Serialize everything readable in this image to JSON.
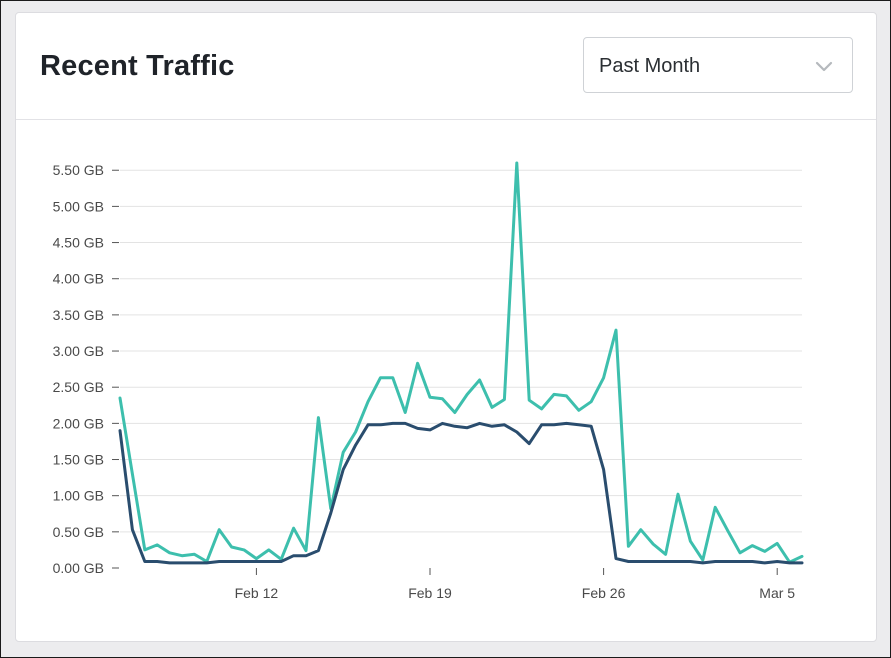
{
  "card": {
    "title": "Recent Traffic",
    "period_select": {
      "selected": "Past Month",
      "icon": "chevron-down-icon"
    }
  },
  "chart_data": {
    "type": "line",
    "y_unit": "GB",
    "ylim": [
      0,
      5.6
    ],
    "y_ticks": [
      {
        "value": 0.0,
        "label": "0.00 GB"
      },
      {
        "value": 0.5,
        "label": "0.50 GB"
      },
      {
        "value": 1.0,
        "label": "1.00 GB"
      },
      {
        "value": 1.5,
        "label": "1.50 GB"
      },
      {
        "value": 2.0,
        "label": "2.00 GB"
      },
      {
        "value": 2.5,
        "label": "2.50 GB"
      },
      {
        "value": 3.0,
        "label": "3.00 GB"
      },
      {
        "value": 3.5,
        "label": "3.50 GB"
      },
      {
        "value": 4.0,
        "label": "4.00 GB"
      },
      {
        "value": 4.5,
        "label": "4.50 GB"
      },
      {
        "value": 5.0,
        "label": "5.00 GB"
      },
      {
        "value": 5.5,
        "label": "5.50 GB"
      }
    ],
    "x_ticks": [
      {
        "index": 11,
        "label": "Feb 12"
      },
      {
        "index": 25,
        "label": "Feb 19"
      },
      {
        "index": 39,
        "label": "Feb 26"
      },
      {
        "index": 53,
        "label": "Mar 5"
      }
    ],
    "grid": true,
    "colors": {
      "teal": "#3dbfad",
      "navy": "#2a4d6e",
      "grid": "#e3e3e3",
      "axis_text": "#4a4a4a"
    },
    "series": [
      {
        "color": "#3dbfad",
        "values": [
          2.35,
          1.3,
          0.25,
          0.32,
          0.21,
          0.17,
          0.19,
          0.09,
          0.53,
          0.29,
          0.25,
          0.13,
          0.25,
          0.12,
          0.55,
          0.24,
          2.08,
          0.82,
          1.6,
          1.88,
          2.3,
          2.63,
          2.63,
          2.15,
          2.83,
          2.36,
          2.34,
          2.15,
          2.4,
          2.6,
          2.22,
          2.33,
          5.6,
          2.32,
          2.2,
          2.4,
          2.38,
          2.18,
          2.3,
          2.63,
          3.29,
          0.3,
          0.53,
          0.33,
          0.19,
          1.02,
          0.37,
          0.11,
          0.84,
          0.52,
          0.21,
          0.31,
          0.23,
          0.34,
          0.08,
          0.16
        ]
      },
      {
        "color": "#2a4d6e",
        "values": [
          1.9,
          0.53,
          0.09,
          0.09,
          0.07,
          0.07,
          0.07,
          0.07,
          0.09,
          0.09,
          0.09,
          0.09,
          0.09,
          0.09,
          0.17,
          0.17,
          0.24,
          0.76,
          1.36,
          1.7,
          1.98,
          1.98,
          2.0,
          2.0,
          1.93,
          1.91,
          2.0,
          1.96,
          1.94,
          2.0,
          1.96,
          1.98,
          1.88,
          1.72,
          1.98,
          1.98,
          2.0,
          1.98,
          1.96,
          1.36,
          0.13,
          0.09,
          0.09,
          0.09,
          0.09,
          0.09,
          0.09,
          0.07,
          0.09,
          0.09,
          0.09,
          0.09,
          0.07,
          0.09,
          0.07,
          0.07
        ]
      }
    ]
  }
}
